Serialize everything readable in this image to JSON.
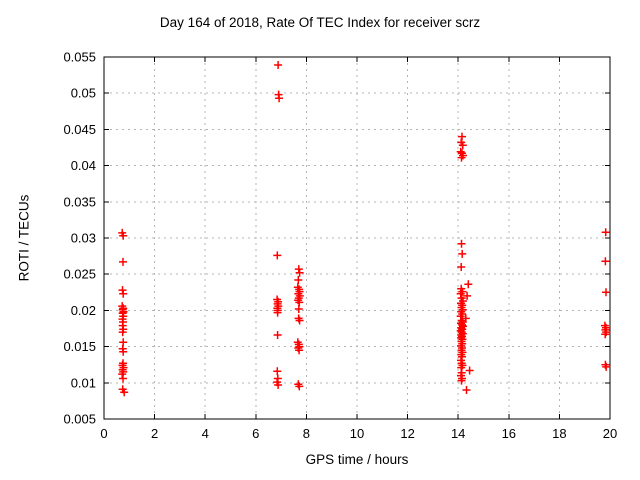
{
  "window": {
    "background": "#ffffff"
  },
  "chart_data": {
    "type": "scatter",
    "title": "Day 164 of 2018, Rate Of TEC Index for receiver scrz",
    "xlabel": "GPS time / hours",
    "ylabel": "ROTI / TECUs",
    "xlim": [
      0,
      20
    ],
    "ylim": [
      0.005,
      0.055
    ],
    "grid": true,
    "legend": "none",
    "marker": {
      "shape": "plus",
      "color": "#ff0000",
      "size": 4
    },
    "xticks": {
      "values": [
        0,
        2,
        4,
        6,
        8,
        10,
        12,
        14,
        16,
        18,
        20
      ],
      "labels": [
        "0",
        "2",
        "4",
        "6",
        "8",
        "10",
        "12",
        "14",
        "16",
        "18",
        "20"
      ]
    },
    "yticks": {
      "values": [
        0.005,
        0.01,
        0.015,
        0.02,
        0.025,
        0.03,
        0.035,
        0.04,
        0.045,
        0.05,
        0.055
      ],
      "labels": [
        "0.005",
        "0.01",
        "0.015",
        "0.02",
        "0.025",
        "0.03",
        "0.035",
        "0.04",
        "0.045",
        "0.05",
        "0.055"
      ]
    },
    "series": [
      {
        "name": "ROTI",
        "points": [
          [
            0.72,
            0.0307
          ],
          [
            0.76,
            0.0303
          ],
          [
            0.75,
            0.0267
          ],
          [
            0.73,
            0.0228
          ],
          [
            0.76,
            0.0223
          ],
          [
            0.72,
            0.0206
          ],
          [
            0.76,
            0.0203
          ],
          [
            0.74,
            0.0201
          ],
          [
            0.77,
            0.0198
          ],
          [
            0.74,
            0.0196
          ],
          [
            0.76,
            0.0192
          ],
          [
            0.73,
            0.0188
          ],
          [
            0.75,
            0.0184
          ],
          [
            0.74,
            0.0179
          ],
          [
            0.76,
            0.0174
          ],
          [
            0.74,
            0.017
          ],
          [
            0.76,
            0.0156
          ],
          [
            0.74,
            0.0147
          ],
          [
            0.76,
            0.0143
          ],
          [
            0.75,
            0.0127
          ],
          [
            0.73,
            0.0124
          ],
          [
            0.77,
            0.0121
          ],
          [
            0.74,
            0.0118
          ],
          [
            0.76,
            0.0115
          ],
          [
            0.72,
            0.0112
          ],
          [
            0.75,
            0.0106
          ],
          [
            0.74,
            0.0091
          ],
          [
            0.8,
            0.0087
          ],
          [
            6.88,
            0.0539
          ],
          [
            6.9,
            0.0498
          ],
          [
            6.92,
            0.0493
          ],
          [
            6.85,
            0.0276
          ],
          [
            6.84,
            0.0215
          ],
          [
            6.88,
            0.0212
          ],
          [
            6.86,
            0.0209
          ],
          [
            6.89,
            0.0206
          ],
          [
            6.85,
            0.0203
          ],
          [
            6.87,
            0.02
          ],
          [
            6.86,
            0.0197
          ],
          [
            6.86,
            0.0166
          ],
          [
            6.85,
            0.0116
          ],
          [
            6.87,
            0.0106
          ],
          [
            6.84,
            0.0101
          ],
          [
            6.88,
            0.0097
          ],
          [
            7.7,
            0.0257
          ],
          [
            7.73,
            0.0252
          ],
          [
            7.68,
            0.0242
          ],
          [
            7.66,
            0.0232
          ],
          [
            7.71,
            0.0229
          ],
          [
            7.73,
            0.0226
          ],
          [
            7.68,
            0.0223
          ],
          [
            7.74,
            0.022
          ],
          [
            7.7,
            0.0217
          ],
          [
            7.67,
            0.0214
          ],
          [
            7.72,
            0.0211
          ],
          [
            7.7,
            0.0202
          ],
          [
            7.69,
            0.0189
          ],
          [
            7.73,
            0.0186
          ],
          [
            7.66,
            0.0156
          ],
          [
            7.7,
            0.0153
          ],
          [
            7.72,
            0.015
          ],
          [
            7.68,
            0.0148
          ],
          [
            7.71,
            0.0145
          ],
          [
            7.68,
            0.0098
          ],
          [
            7.72,
            0.0095
          ],
          [
            14.15,
            0.044
          ],
          [
            14.12,
            0.0432
          ],
          [
            14.18,
            0.0428
          ],
          [
            14.1,
            0.0419
          ],
          [
            14.15,
            0.0417
          ],
          [
            14.19,
            0.0414
          ],
          [
            14.13,
            0.0411
          ],
          [
            14.13,
            0.0292
          ],
          [
            14.16,
            0.0278
          ],
          [
            14.12,
            0.026
          ],
          [
            14.4,
            0.0236
          ],
          [
            14.12,
            0.023
          ],
          [
            14.17,
            0.0226
          ],
          [
            14.1,
            0.0223
          ],
          [
            14.35,
            0.022
          ],
          [
            14.14,
            0.0217
          ],
          [
            14.19,
            0.0213
          ],
          [
            14.11,
            0.021
          ],
          [
            14.16,
            0.0207
          ],
          [
            14.13,
            0.0204
          ],
          [
            14.18,
            0.0201
          ],
          [
            14.12,
            0.0198
          ],
          [
            14.16,
            0.0195
          ],
          [
            14.1,
            0.0192
          ],
          [
            14.3,
            0.0189
          ],
          [
            14.14,
            0.0186
          ],
          [
            14.18,
            0.0184
          ],
          [
            14.11,
            0.0182
          ],
          [
            14.15,
            0.018
          ],
          [
            14.19,
            0.0178
          ],
          [
            14.12,
            0.0176
          ],
          [
            14.16,
            0.0174
          ],
          [
            14.1,
            0.0172
          ],
          [
            14.14,
            0.017
          ],
          [
            14.18,
            0.0168
          ],
          [
            14.12,
            0.0166
          ],
          [
            14.15,
            0.0164
          ],
          [
            14.11,
            0.0162
          ],
          [
            14.17,
            0.016
          ],
          [
            14.13,
            0.0157
          ],
          [
            14.16,
            0.0154
          ],
          [
            14.11,
            0.0151
          ],
          [
            14.15,
            0.0148
          ],
          [
            14.13,
            0.0145
          ],
          [
            14.17,
            0.0142
          ],
          [
            14.12,
            0.0139
          ],
          [
            14.15,
            0.0136
          ],
          [
            14.11,
            0.0131
          ],
          [
            14.14,
            0.0127
          ],
          [
            14.17,
            0.0124
          ],
          [
            14.12,
            0.0121
          ],
          [
            14.45,
            0.0117
          ],
          [
            14.14,
            0.0114
          ],
          [
            14.11,
            0.011
          ],
          [
            14.15,
            0.0106
          ],
          [
            14.13,
            0.0103
          ],
          [
            14.33,
            0.009
          ],
          [
            19.83,
            0.0308
          ],
          [
            19.82,
            0.0268
          ],
          [
            19.84,
            0.0225
          ],
          [
            19.8,
            0.0179
          ],
          [
            19.84,
            0.0176
          ],
          [
            19.82,
            0.0173
          ],
          [
            19.85,
            0.017
          ],
          [
            19.81,
            0.0167
          ],
          [
            19.82,
            0.0125
          ],
          [
            19.85,
            0.0122
          ]
        ]
      }
    ]
  }
}
